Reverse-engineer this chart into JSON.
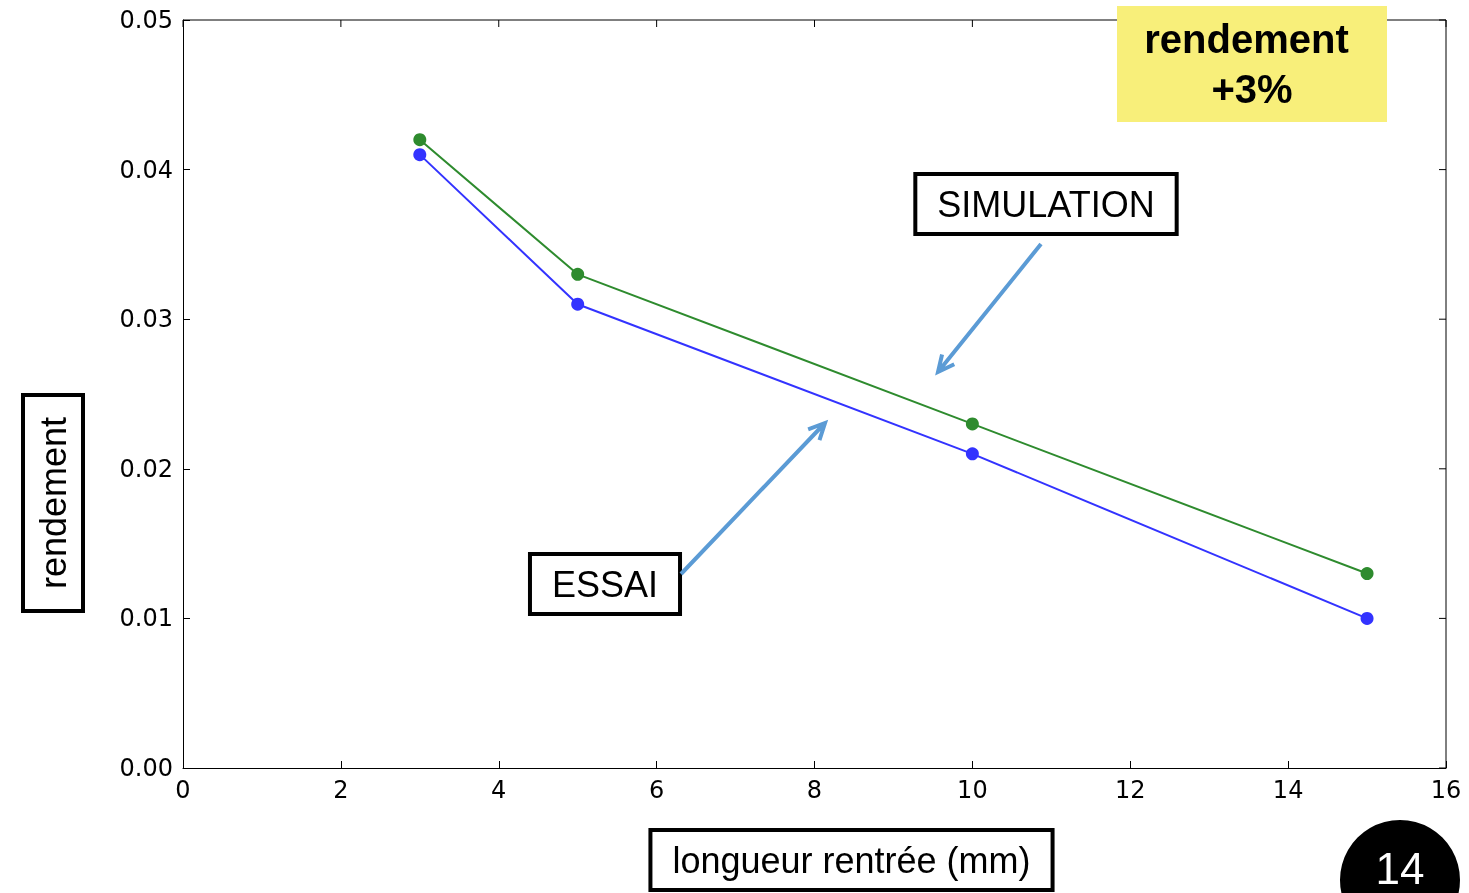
{
  "chart_data": {
    "type": "line",
    "xlabel": "longueur rentrée (mm)",
    "ylabel": "rendement",
    "x": [
      3,
      5,
      10,
      15
    ],
    "series": [
      {
        "color": "#2e8b2e",
        "values": [
          0.042,
          0.033,
          0.023,
          0.013
        ]
      },
      {
        "color": "#3333ff",
        "values": [
          0.041,
          0.031,
          0.021,
          0.01
        ]
      }
    ],
    "xlim": [
      0,
      16
    ],
    "xticks": [
      0,
      2,
      4,
      6,
      8,
      10,
      12,
      14,
      16
    ],
    "ylim": [
      0,
      0.05
    ],
    "yticks": [
      {
        "value": 0,
        "label": "0.00"
      },
      {
        "value": 0.01,
        "label": "0.01"
      },
      {
        "value": 0.02,
        "label": "0.02"
      },
      {
        "value": 0.03,
        "label": "0.03"
      },
      {
        "value": 0.04,
        "label": "0.04"
      },
      {
        "value": 0.05,
        "label": "0.05"
      }
    ],
    "grid": false,
    "marker": "circle",
    "line_style": "solid",
    "annotations": [
      "SIMULATION",
      "ESSAI",
      "rendement +3%",
      "14"
    ]
  }
}
